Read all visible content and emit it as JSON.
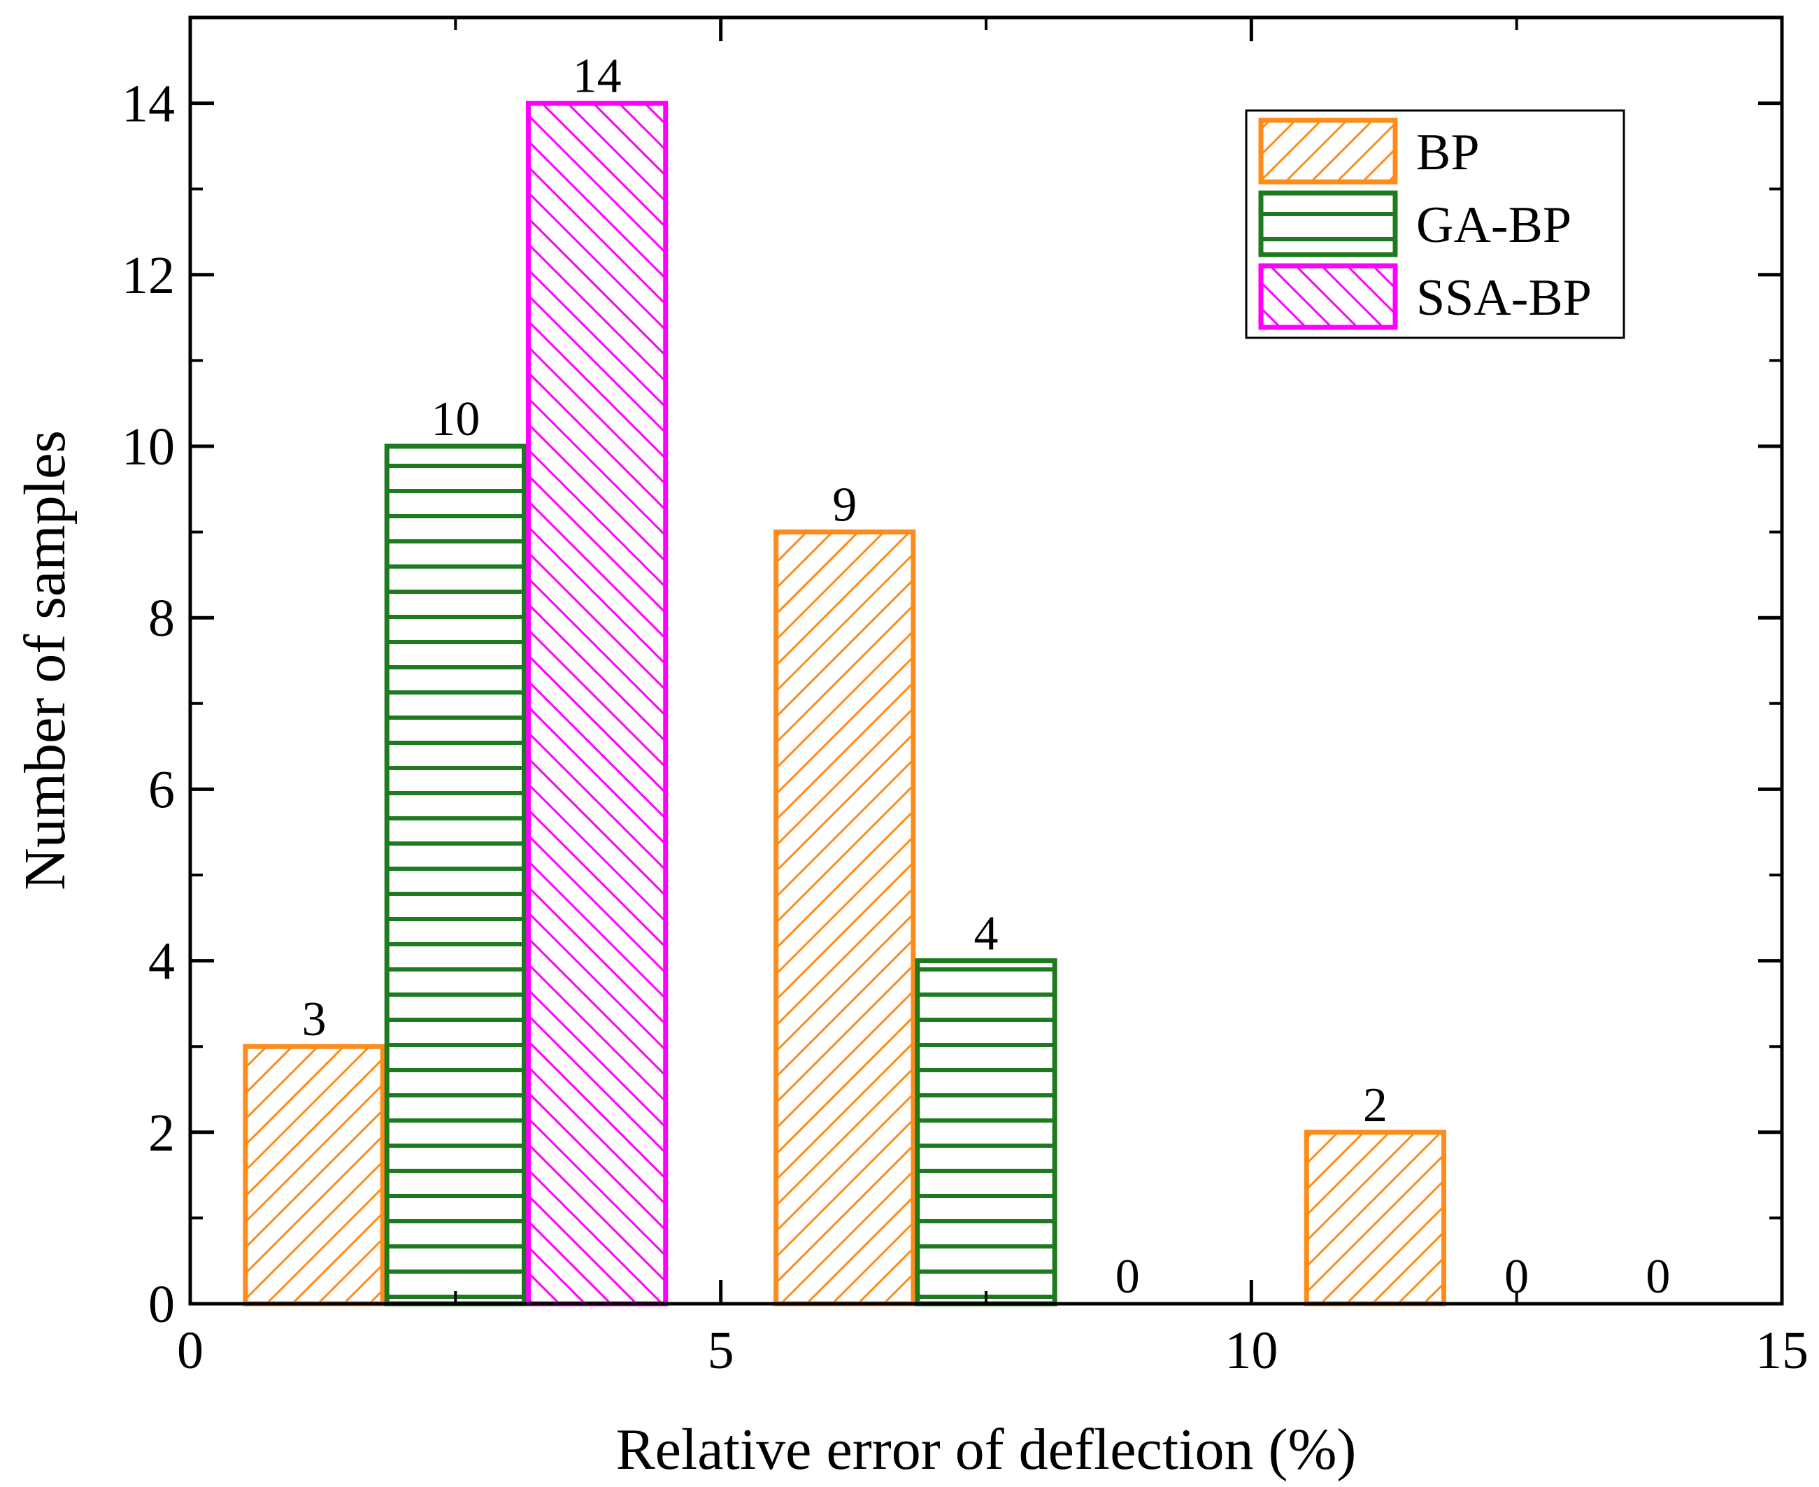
{
  "chart_data": {
    "type": "bar",
    "title": "",
    "xlabel": "Relative error of deflection (%)",
    "ylabel": "Number of samples",
    "xlim": [
      0,
      15
    ],
    "ylim": [
      0,
      15
    ],
    "xticks": [
      0,
      5,
      10,
      15
    ],
    "yticks": [
      0,
      2,
      4,
      6,
      8,
      10,
      12,
      14
    ],
    "grid": false,
    "legend_position": "top-right",
    "groups": [
      {
        "center": 2.5
      },
      {
        "center": 7.5
      },
      {
        "center": 12.5
      }
    ],
    "series": [
      {
        "name": "BP",
        "color": "#FF8C1A",
        "pattern": "diagonal-up",
        "values": [
          3,
          9,
          2
        ]
      },
      {
        "name": "GA-BP",
        "color": "#1E7A1E",
        "pattern": "horizontal",
        "values": [
          10,
          4,
          0
        ]
      },
      {
        "name": "SSA-BP",
        "color": "#FF00FF",
        "pattern": "diagonal-down",
        "values": [
          14,
          0,
          0
        ]
      }
    ],
    "bar_width": 1.333,
    "data_labels": [
      [
        "3",
        "9",
        "2"
      ],
      [
        "10",
        "4",
        "0"
      ],
      [
        "14",
        "0",
        "0"
      ]
    ]
  }
}
